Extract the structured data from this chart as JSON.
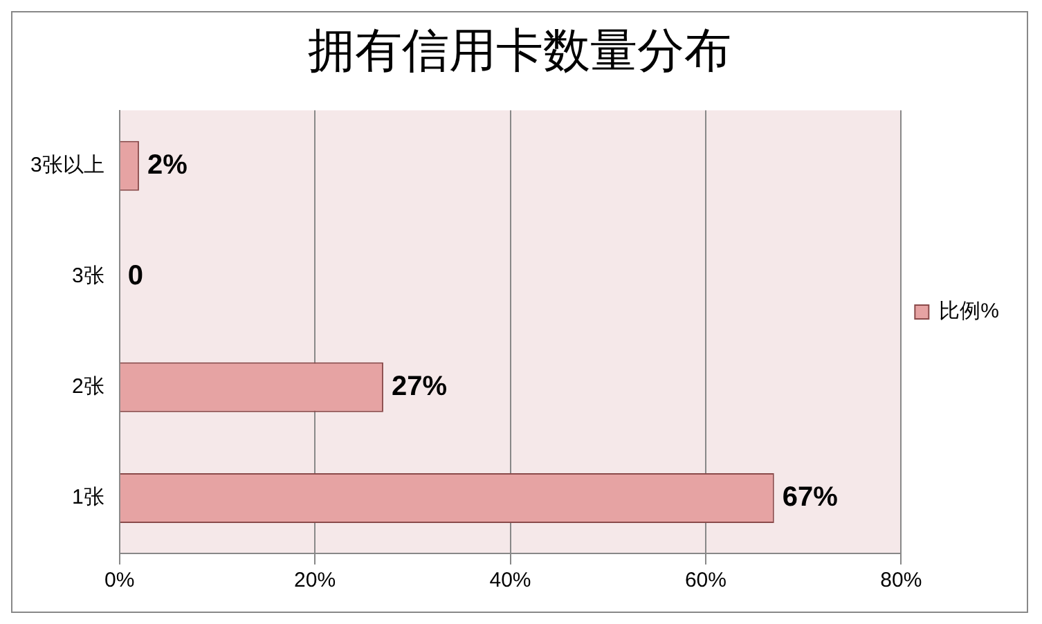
{
  "chart_data": {
    "type": "bar",
    "orientation": "horizontal",
    "title": "拥有信用卡数量分布",
    "categories": [
      "3张以上",
      "3张",
      "2张",
      "1张"
    ],
    "series": [
      {
        "name": "比例%",
        "color": "#e6a3a3",
        "values": [
          2,
          0,
          27,
          67
        ],
        "value_labels": [
          "2%",
          "0",
          "27%",
          "67%"
        ]
      }
    ],
    "xlim": [
      0,
      80
    ],
    "xticks": [
      {
        "value": 0,
        "label": "0%"
      },
      {
        "value": 20,
        "label": "20%"
      },
      {
        "value": 40,
        "label": "40%"
      },
      {
        "value": 60,
        "label": "60%"
      },
      {
        "value": 80,
        "label": "80%"
      }
    ],
    "grid": "x",
    "legend": "right"
  }
}
